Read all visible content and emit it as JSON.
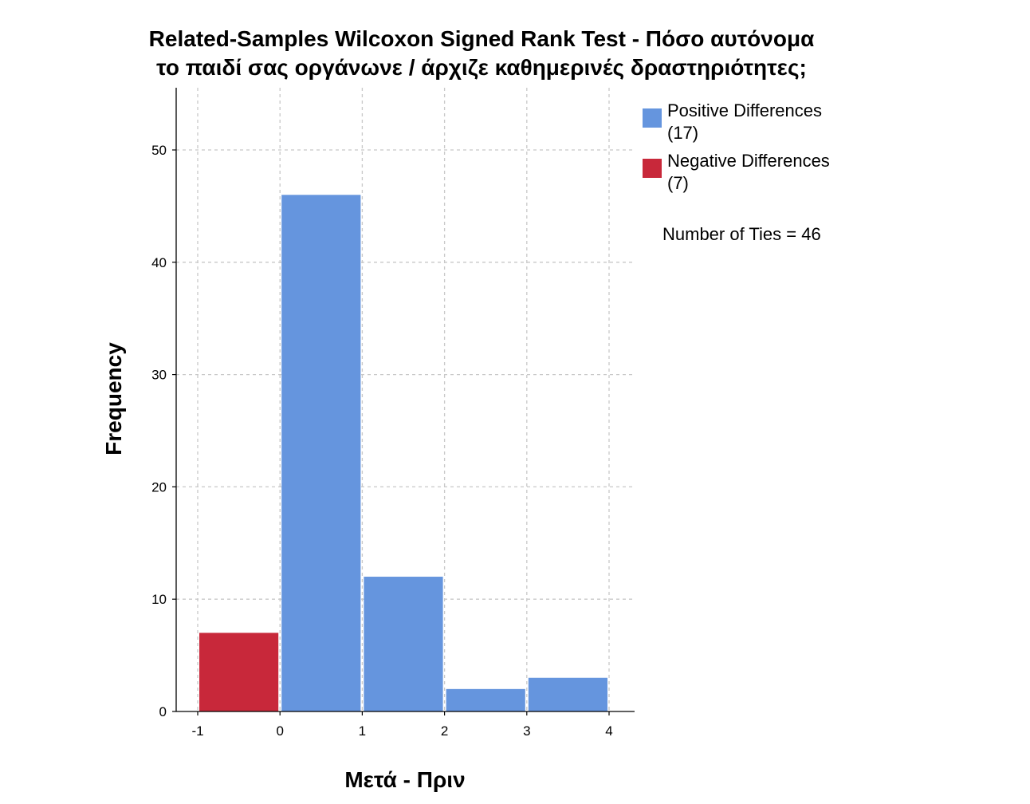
{
  "chart_data": {
    "type": "bar",
    "title_lines": [
      "Related-Samples Wilcoxon Signed Rank Test - Πόσο αυτόνομα",
      "το παιδί σας οργάνωνε / άρχιζε καθημερινές δραστηριότητες;"
    ],
    "xlabel": "Μετά - Πριν",
    "ylabel": "Frequency",
    "x_ticks": [
      -1,
      0,
      1,
      2,
      3,
      4
    ],
    "y_ticks": [
      0,
      10,
      20,
      30,
      40,
      50
    ],
    "xlim": [
      -1.3,
      4.3
    ],
    "ylim": [
      0,
      55
    ],
    "grid": true,
    "bins": [
      {
        "from": -1,
        "to": 0,
        "value": 7,
        "series": "negative"
      },
      {
        "from": 0,
        "to": 1,
        "value": 46,
        "series": "positive"
      },
      {
        "from": 1,
        "to": 2,
        "value": 12,
        "series": "positive"
      },
      {
        "from": 2,
        "to": 3,
        "value": 2,
        "series": "positive"
      },
      {
        "from": 3,
        "to": 4,
        "value": 3,
        "series": "positive"
      }
    ],
    "legend": {
      "placement": "right",
      "items": [
        {
          "key": "positive",
          "line1": "Positive Differences",
          "line2": "(17)",
          "color": "#6595DE"
        },
        {
          "key": "negative",
          "line1": "Negative Differences",
          "line2": "(7)",
          "color": "#C8283A"
        }
      ],
      "note": "Number of Ties = 46"
    }
  }
}
